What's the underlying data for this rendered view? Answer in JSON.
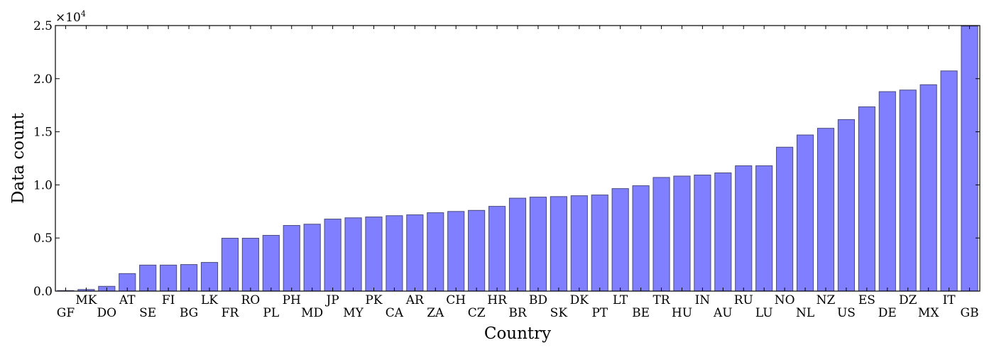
{
  "chart_data": {
    "type": "bar",
    "xlabel": "Country",
    "ylabel": "Data count",
    "y_multiplier": "×10",
    "y_multiplier_exp": "4",
    "ylim": [
      0,
      25000
    ],
    "yticks": [
      {
        "value": 0,
        "label": "0.0"
      },
      {
        "value": 5000,
        "label": "0.5"
      },
      {
        "value": 10000,
        "label": "1.0"
      },
      {
        "value": 15000,
        "label": "1.5"
      },
      {
        "value": 20000,
        "label": "2.0"
      },
      {
        "value": 25000,
        "label": "2.5"
      }
    ],
    "categories": [
      "GF",
      "MK",
      "DO",
      "AT",
      "SE",
      "FI",
      "BG",
      "LK",
      "FR",
      "RO",
      "PL",
      "PH",
      "MD",
      "JP",
      "MY",
      "PK",
      "CA",
      "AR",
      "ZA",
      "CH",
      "CZ",
      "HR",
      "BR",
      "BD",
      "SK",
      "DK",
      "PT",
      "LT",
      "BE",
      "TR",
      "HU",
      "IN",
      "AU",
      "RU",
      "LU",
      "NO",
      "NL",
      "NZ",
      "US",
      "ES",
      "DE",
      "DZ",
      "MX",
      "IT",
      "GB"
    ],
    "values": [
      50,
      150,
      450,
      1650,
      2450,
      2450,
      2500,
      2700,
      4980,
      4980,
      5250,
      6180,
      6300,
      6780,
      6900,
      6980,
      7100,
      7180,
      7380,
      7500,
      7600,
      7980,
      8750,
      8850,
      8900,
      8980,
      9050,
      9650,
      9920,
      10700,
      10830,
      10930,
      11130,
      11800,
      11800,
      13550,
      14700,
      15330,
      16150,
      17350,
      18780,
      18930,
      19430,
      20730,
      24950
    ],
    "bar_color": "#7f7fff",
    "bar_edge_color": "#4a4a7a",
    "grid": false,
    "legend": "none"
  }
}
